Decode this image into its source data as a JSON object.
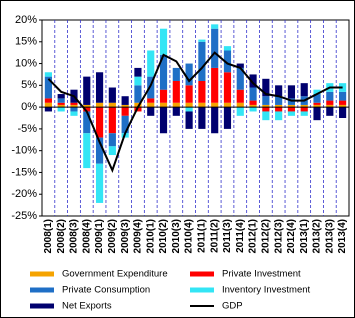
{
  "chart_data": {
    "type": "bar",
    "stacked": true,
    "categories": [
      "2008(1)",
      "2008(2)",
      "2008(3)",
      "2008(4)",
      "2009(1)",
      "2009(2)",
      "2009(3)",
      "2009(4)",
      "2010(1)",
      "2010(2)",
      "2010(3)",
      "2010(4)",
      "2011(1)",
      "2011(2)",
      "2011(3)",
      "2011(4)",
      "2012(1)",
      "2012(2)",
      "2012(3)",
      "2012(4)",
      "2013(1)",
      "2013(2)",
      "2013(3)",
      "2013(4)"
    ],
    "series": [
      {
        "name": "Government Expenditure",
        "color": "#f5a300",
        "values": [
          1,
          0.5,
          0.5,
          0.5,
          1,
          1,
          0.5,
          1,
          1,
          1,
          1,
          1,
          1,
          1,
          1,
          1,
          0.5,
          0.5,
          0.5,
          0.5,
          0.5,
          0.5,
          0.5,
          0.5
        ]
      },
      {
        "name": "Private Investment",
        "color": "#ff0000",
        "values": [
          1,
          0.5,
          0.5,
          -1,
          -7,
          -6,
          -2,
          -1,
          1,
          3,
          5,
          4,
          5,
          8,
          7,
          3,
          1,
          -1,
          -1,
          -1,
          -1,
          0.5,
          1,
          1
        ]
      },
      {
        "name": "Private Consumption",
        "color": "#1f6fc6",
        "values": [
          5,
          1,
          -1,
          -5,
          -6,
          -3,
          -4,
          4,
          5,
          8,
          3,
          5,
          9,
          9,
          5,
          5,
          3,
          2,
          2,
          1.5,
          2,
          2,
          2,
          2
        ]
      },
      {
        "name": "Inventory Investment",
        "color": "#33e5f5",
        "values": [
          1,
          -1,
          -1,
          -8,
          -9,
          -2,
          -1,
          2,
          6,
          6,
          0,
          -1,
          0.5,
          1,
          1,
          -2,
          -1,
          -2,
          -2,
          -1,
          -1,
          1,
          2,
          2
        ]
      },
      {
        "name": "Net Exports",
        "color": "#00006e",
        "values": [
          -1,
          1,
          3,
          6.5,
          7,
          3.5,
          2,
          2,
          -2,
          -6,
          -2,
          -4,
          -5,
          -6,
          -5,
          1,
          3,
          4,
          2.5,
          3,
          3,
          -3,
          -2,
          -2.5
        ]
      },
      {
        "name": "GDP",
        "color": "#000000",
        "type": "line",
        "values": [
          6.5,
          3.5,
          2.5,
          -1,
          -8,
          -14.5,
          -6,
          0,
          5,
          12,
          10.5,
          6,
          9,
          12.5,
          10,
          9,
          5.5,
          3,
          2.5,
          1.5,
          1.5,
          3,
          4.5,
          4.5
        ]
      }
    ],
    "ylim": [
      -25,
      20
    ],
    "yticks": [
      {
        "value": -25,
        "label": "-25%"
      },
      {
        "value": -20,
        "label": "-20%"
      },
      {
        "value": -15,
        "label": "-15%"
      },
      {
        "value": -10,
        "label": "-10%"
      },
      {
        "value": -5,
        "label": "-5%"
      },
      {
        "value": 0,
        "label": "0%"
      },
      {
        "value": 5,
        "label": "5%"
      },
      {
        "value": 10,
        "label": "10%"
      },
      {
        "value": 15,
        "label": "15%"
      },
      {
        "value": 20,
        "label": "20%"
      }
    ],
    "grid": "vertical",
    "legend": "bottom"
  }
}
